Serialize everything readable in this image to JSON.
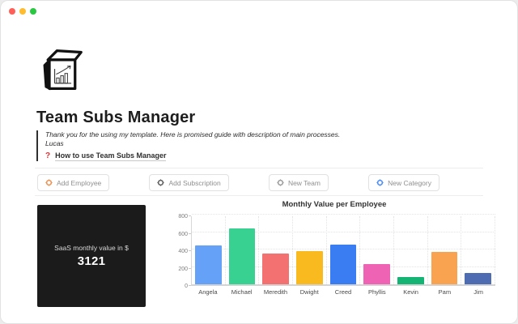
{
  "window": {
    "controls": [
      {
        "name": "close",
        "color": "#ff5f57"
      },
      {
        "name": "minimize",
        "color": "#febc2e"
      },
      {
        "name": "zoom",
        "color": "#28c840"
      }
    ]
  },
  "page": {
    "icon": "cube-bar-chart",
    "title": "Team Subs Manager",
    "quote": {
      "line1": "Thank you for the using my template. Here is promised guide with description of main processes.",
      "line2": "Lucas"
    },
    "guide_link": {
      "icon": "red-question-mark",
      "question_glyph": "?",
      "label": "How to use Team Subs Manager"
    }
  },
  "actions": [
    {
      "label": "Add Employee",
      "icon": "gear-circle",
      "icon_color": "#eb9457"
    },
    {
      "label": "Add Subscription",
      "icon": "gear-circle",
      "icon_color": "#606060"
    },
    {
      "label": "New Team",
      "icon": "gear-circle",
      "icon_color": "#9e9e9e"
    },
    {
      "label": "New Category",
      "icon": "gear-circle",
      "icon_color": "#4f8df5"
    }
  ],
  "kpi": {
    "label": "SaaS monthly value in $",
    "value": "3121",
    "background": "#1b1b1b",
    "text_color": "#ffffff"
  },
  "chart_data": {
    "type": "bar",
    "title": "Monthly Value per Employee",
    "categories": [
      "Angela",
      "Michael",
      "Meredith",
      "Dwight",
      "Creed",
      "Phyllis",
      "Kevin",
      "Pam",
      "Jim"
    ],
    "values": [
      450,
      645,
      350,
      385,
      460,
      235,
      85,
      370,
      135
    ],
    "bar_colors": [
      "#64a1f7",
      "#38d191",
      "#f47171",
      "#f8ba1f",
      "#3a7df2",
      "#ee63b3",
      "#16b474",
      "#f9a350",
      "#4d6cb1"
    ],
    "xlabel": "",
    "ylabel": "",
    "ylim": [
      0,
      800
    ],
    "yticks": [
      0,
      200,
      400,
      600,
      800
    ],
    "grid": "dotted",
    "legend": "none"
  }
}
